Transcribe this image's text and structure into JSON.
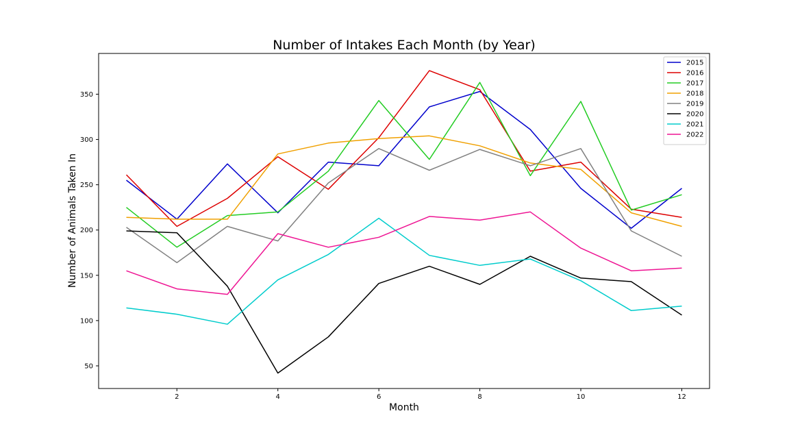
{
  "chart_data": {
    "type": "line",
    "title": "Number of Intakes Each Month (by Year)",
    "xlabel": "Month",
    "ylabel": "Number of Animals Taken In",
    "x": [
      1,
      2,
      3,
      4,
      5,
      6,
      7,
      8,
      9,
      10,
      11,
      12
    ],
    "xticks": [
      2,
      4,
      6,
      8,
      10,
      12
    ],
    "yticks": [
      50,
      100,
      150,
      200,
      250,
      300,
      350
    ],
    "xlim": [
      0.45,
      12.55
    ],
    "ylim": [
      25,
      395
    ],
    "grid": false,
    "legend_position": "top-right",
    "series": [
      {
        "name": "2015",
        "color": "#0000cc",
        "values": [
          255,
          212,
          273,
          219,
          275,
          271,
          336,
          353,
          311,
          246,
          202,
          246
        ]
      },
      {
        "name": "2016",
        "color": "#dd0000",
        "values": [
          261,
          204,
          235,
          281,
          245,
          302,
          376,
          355,
          265,
          275,
          223,
          214
        ]
      },
      {
        "name": "2017",
        "color": "#22cc22",
        "values": [
          225,
          181,
          216,
          220,
          265,
          343,
          278,
          363,
          260,
          342,
          222,
          239
        ]
      },
      {
        "name": "2018",
        "color": "#f0a000",
        "values": [
          214,
          212,
          212,
          284,
          296,
          301,
          304,
          293,
          274,
          267,
          219,
          204
        ]
      },
      {
        "name": "2019",
        "color": "#808080",
        "values": [
          203,
          164,
          204,
          188,
          252,
          290,
          266,
          289,
          271,
          290,
          199,
          171
        ]
      },
      {
        "name": "2020",
        "color": "#000000",
        "values": [
          199,
          197,
          138,
          42,
          82,
          141,
          160,
          140,
          171,
          147,
          143,
          106
        ]
      },
      {
        "name": "2021",
        "color": "#00cccc",
        "values": [
          114,
          107,
          96,
          145,
          173,
          213,
          172,
          161,
          168,
          144,
          111,
          116
        ]
      },
      {
        "name": "2022",
        "color": "#ee1493",
        "values": [
          155,
          135,
          129,
          196,
          181,
          192,
          215,
          211,
          220,
          180,
          155,
          158
        ]
      }
    ]
  }
}
